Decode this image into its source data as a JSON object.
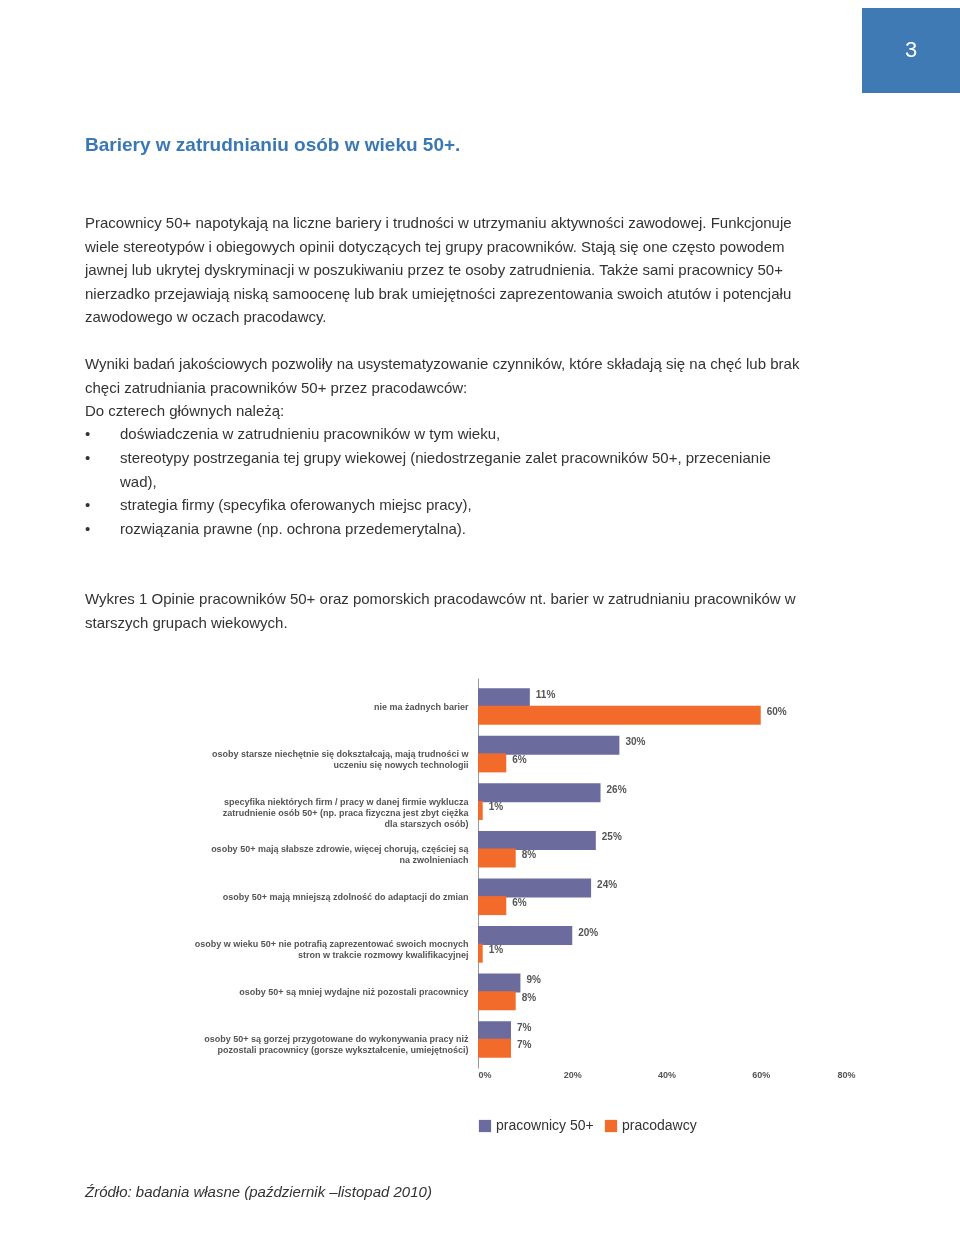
{
  "chart_data": {
    "type": "bar",
    "orientation": "horizontal",
    "title": "Wykres 1 Opinie pracowników 50+ oraz pomorskich pracodawców nt. barier w zatrudnianiu pracowników w starszych grupach wiekowych.",
    "categories": [
      "nie ma żadnych barier",
      "osoby starsze niechętnie się dokształcają, mają trudności w uczeniu się nowych technologii",
      "specyfika niektórych firm / pracy w danej firmie wyklucza zatrudnienie osób 50+ (np. praca fizyczna jest zbyt ciężka dla starszych osób)",
      "osoby 50+ mają słabsze zdrowie, więcej chorują, częściej są na zwolnieniach",
      "osoby 50+ mają mniejszą zdolność do adaptacji do zmian",
      "osoby w wieku 50+ nie potrafią zaprezentować swoich mocnych stron w trakcie rozmowy kwalifikacyjnej",
      "osoby 50+ są mniej wydajne niż pozostali pracownicy",
      "osoby 50+ są gorzej przygotowane do wykonywania pracy niż pozostali pracownicy (gorsze wykształcenie, umiejętności)"
    ],
    "series": [
      {
        "name": "pracownicy 50+",
        "color": "#6b6b9e",
        "values": [
          11,
          30,
          26,
          25,
          24,
          20,
          9,
          7
        ],
        "value_labels": [
          "11%",
          "30%",
          "26%",
          "25%",
          "24%",
          "20%",
          "9%",
          "7%"
        ]
      },
      {
        "name": "pracodawcy",
        "color": "#f26b2a",
        "values": [
          60,
          6,
          1,
          8,
          6,
          1,
          8,
          7
        ],
        "value_labels": [
          "60%",
          "6%",
          "1%",
          "8%",
          "6%",
          "1%",
          "8%",
          "7%"
        ]
      }
    ],
    "xlim": [
      0,
      80
    ],
    "xticks": [
      {
        "value": 0,
        "label": "0%"
      },
      {
        "value": 20,
        "label": "20%"
      },
      {
        "value": 40,
        "label": "40%"
      },
      {
        "value": 60,
        "label": "60%"
      },
      {
        "value": 80,
        "label": "80%"
      }
    ],
    "grid": false,
    "legend": "bottom",
    "annotations": [
      "3",
      "Bariery w zatrudnianiu osób w wieku 50+.",
      "Pracownicy 50+ napotykają na liczne bariery i trudności w utrzymaniu aktywności zawodowej. Funkcjonuje wiele stereotypów i obiegowych opinii dotyczących tej grupy pracowników. Stają się one często powodem jawnej lub ukrytej dyskryminacji w poszukiwaniu przez te osoby zatrudnienia. Także sami pracownicy 50+ nierzadko przejawiają niską samoocenę lub brak umiejętności zaprezentowania swoich atutów i potencjału zawodowego w oczach pracodawcy.",
      "Wyniki badań jakościowych pozwoliły na usystematyzowanie czynników, które składają się na chęć lub brak chęci zatrudniania pracowników 50+ przez pracodawców:",
      "Do czterech głównych należą:",
      "• doświadczenia w zatrudnieniu pracowników w tym wieku,",
      "• stereotypy postrzegania tej grupy wiekowej (niedostrzeganie zalet pracowników 50+, przecenianie wad),",
      "• strategia firmy (specyfika oferowanych miejsc pracy),",
      "• rozwiązania prawne (np. ochrona przedemerytalna).",
      "Źródło: badania własne (październik –listopad 2010)"
    ]
  }
}
